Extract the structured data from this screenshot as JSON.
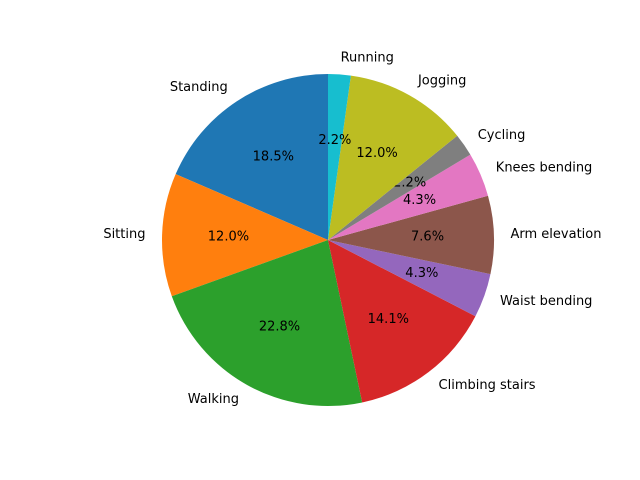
{
  "chart_data": {
    "type": "pie",
    "title": "",
    "start_angle_deg": 90,
    "direction": "counterclockwise",
    "slices": [
      {
        "label": "Standing",
        "value": 18.5,
        "pct_text": "18.5%",
        "color": "#1f77b4"
      },
      {
        "label": "Sitting",
        "value": 12.0,
        "pct_text": "12.0%",
        "color": "#ff7f0e"
      },
      {
        "label": "Walking",
        "value": 22.8,
        "pct_text": "22.8%",
        "color": "#2ca02c"
      },
      {
        "label": "Climbing stairs",
        "value": 14.1,
        "pct_text": "14.1%",
        "color": "#d62728"
      },
      {
        "label": "Waist bending",
        "value": 4.3,
        "pct_text": "4.3%",
        "color": "#9467bd"
      },
      {
        "label": "Arm elevation",
        "value": 7.6,
        "pct_text": "7.6%",
        "color": "#8c564b"
      },
      {
        "label": "Knees bending",
        "value": 4.3,
        "pct_text": "4.3%",
        "color": "#e377c2"
      },
      {
        "label": "Cycling",
        "value": 2.2,
        "pct_text": "2.2%",
        "color": "#7f7f7f"
      },
      {
        "label": "Jogging",
        "value": 12.0,
        "pct_text": "12.0%",
        "color": "#bcbd22"
      },
      {
        "label": "Running",
        "value": 2.2,
        "pct_text": "2.2%",
        "color": "#17becf"
      }
    ]
  }
}
